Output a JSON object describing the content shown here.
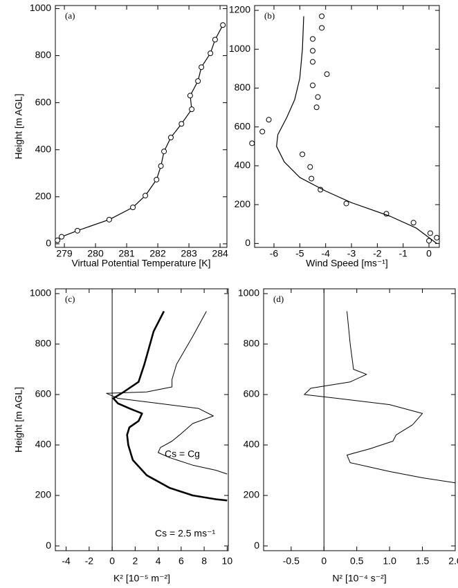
{
  "chart_data": [
    {
      "type": "line",
      "panel_label": "(a)",
      "x_label": "Virtual Potential Temperature [K]",
      "y_label": "Height [m AGL]",
      "xlim": [
        278.71,
        284.22
      ],
      "xticks": [
        279,
        280,
        281,
        282,
        283,
        284
      ],
      "ylim": [
        -15,
        1013
      ],
      "yticks": [
        0,
        200,
        400,
        600,
        800,
        1000
      ],
      "series": [
        {
          "color": "#000000",
          "line_width": 1.2,
          "marker": "circle",
          "x": [
            278.78,
            278.91,
            279.42,
            280.44,
            281.2,
            281.6,
            281.96,
            282.1,
            282.2,
            282.42,
            282.76,
            283.09,
            283.04,
            283.29,
            283.4,
            283.69,
            283.84,
            284.09
          ],
          "values": [
            15,
            30,
            56,
            103,
            155,
            205,
            273,
            331,
            393,
            452,
            510,
            572,
            630,
            692,
            751,
            810,
            868,
            930
          ]
        }
      ]
    },
    {
      "type": "line",
      "panel_label": "(b)",
      "x_label": "Wind Speed [ms⁻¹]",
      "xlim": [
        -6.75,
        0.4
      ],
      "xticks": [
        -6,
        -5,
        -4,
        -3,
        -2,
        -1,
        0
      ],
      "ylim": [
        -20,
        1225
      ],
      "yticks": [
        0,
        200,
        400,
        600,
        800,
        1000,
        1200
      ],
      "series": [
        {
          "color": "#000000",
          "line_width": 0,
          "marker": "circle",
          "x": [
            0,
            0.05,
            0.3,
            -0.6,
            -1.65,
            -3.2,
            -4.2,
            -4.55,
            -4.6,
            -4.9,
            -6.85,
            -6.45,
            -6.2,
            -4.35,
            -4.3,
            -4.5,
            -3.95,
            -4.5,
            -4.5,
            -4.5,
            -4.15,
            -4.15
          ],
          "values": [
            14,
            53,
            30,
            107,
            153,
            206,
            277,
            334,
            394,
            459,
            516,
            576,
            637,
            701,
            754,
            814,
            872,
            935,
            992,
            1053,
            1110,
            1170
          ]
        },
        {
          "color": "#000000",
          "line_width": 1.2,
          "marker": "none",
          "x": [
            0.3,
            -0.5,
            -1.5,
            -3,
            -4,
            -5,
            -5.6,
            -5.9,
            -5.85,
            -5.5,
            -5.2,
            -5,
            -4.9,
            -4.85
          ],
          "values": [
            0,
            80,
            140,
            210,
            270,
            340,
            420,
            500,
            560,
            650,
            740,
            850,
            1000,
            1170
          ]
        }
      ]
    },
    {
      "type": "line",
      "panel_label": "(c)",
      "x_label": "K² [10⁻⁵ m⁻²]",
      "y_label": "Height [m AGL]",
      "xlim": [
        -4.94,
        10.1
      ],
      "xticks": [
        -4,
        -2,
        0,
        2,
        4,
        6,
        8,
        10
      ],
      "ylim": [
        -19,
        1019
      ],
      "yticks": [
        0,
        200,
        400,
        600,
        800,
        1000
      ],
      "reference_line_x": 0,
      "annotations": [
        "Cs = Cg",
        "Cs = 2.5 ms⁻¹"
      ],
      "series": [
        {
          "color": "#000000",
          "line_width": 1,
          "marker": "none",
          "x": [
            8.2,
            7,
            5.6,
            5.2,
            5.2,
            3,
            -0.5,
            0.5,
            4,
            7.5,
            8.8,
            7,
            6,
            5.2,
            4.2,
            4,
            5,
            7,
            9,
            10
          ],
          "values": [
            930,
            830,
            720,
            660,
            630,
            610,
            605,
            585,
            565,
            545,
            515,
            485,
            445,
            415,
            390,
            370,
            350,
            320,
            300,
            285
          ]
        },
        {
          "color": "#000000",
          "line_width": 2.6,
          "marker": "none",
          "x": [
            4.5,
            3.6,
            2.8,
            2.3,
            1,
            0.1,
            0.5,
            1.5,
            2.6,
            2.3,
            1.5,
            1.3,
            1.4,
            1.8,
            3,
            5,
            7,
            9,
            10
          ],
          "values": [
            930,
            850,
            720,
            650,
            610,
            585,
            565,
            545,
            525,
            495,
            470,
            440,
            400,
            340,
            280,
            230,
            200,
            185,
            180
          ]
        }
      ]
    },
    {
      "type": "line",
      "panel_label": "(d)",
      "x_label": "N² [10⁻⁴ s⁻²]",
      "xlim": [
        -0.92,
        2.0
      ],
      "xticks": [
        -0.5,
        0,
        0.5,
        {
          "value": 1,
          "label": "1.0"
        },
        1.5,
        {
          "value": 2,
          "label": "2.0"
        }
      ],
      "ylim": [
        -19,
        1019
      ],
      "yticks": [
        0,
        200,
        400,
        600,
        800,
        1000
      ],
      "reference_line_x": 0,
      "series": [
        {
          "color": "#000000",
          "line_width": 1,
          "marker": "none",
          "x": [
            0.35,
            0.4,
            0.45,
            0.65,
            0.4,
            -0.2,
            -0.3,
            0.2,
            1.0,
            1.5,
            1.35,
            1.1,
            1.05,
            0.7,
            0.35,
            0.4,
            1,
            1.5,
            2
          ],
          "values": [
            930,
            800,
            700,
            680,
            650,
            625,
            600,
            585,
            560,
            525,
            480,
            440,
            415,
            385,
            360,
            330,
            295,
            270,
            250
          ]
        }
      ]
    }
  ]
}
